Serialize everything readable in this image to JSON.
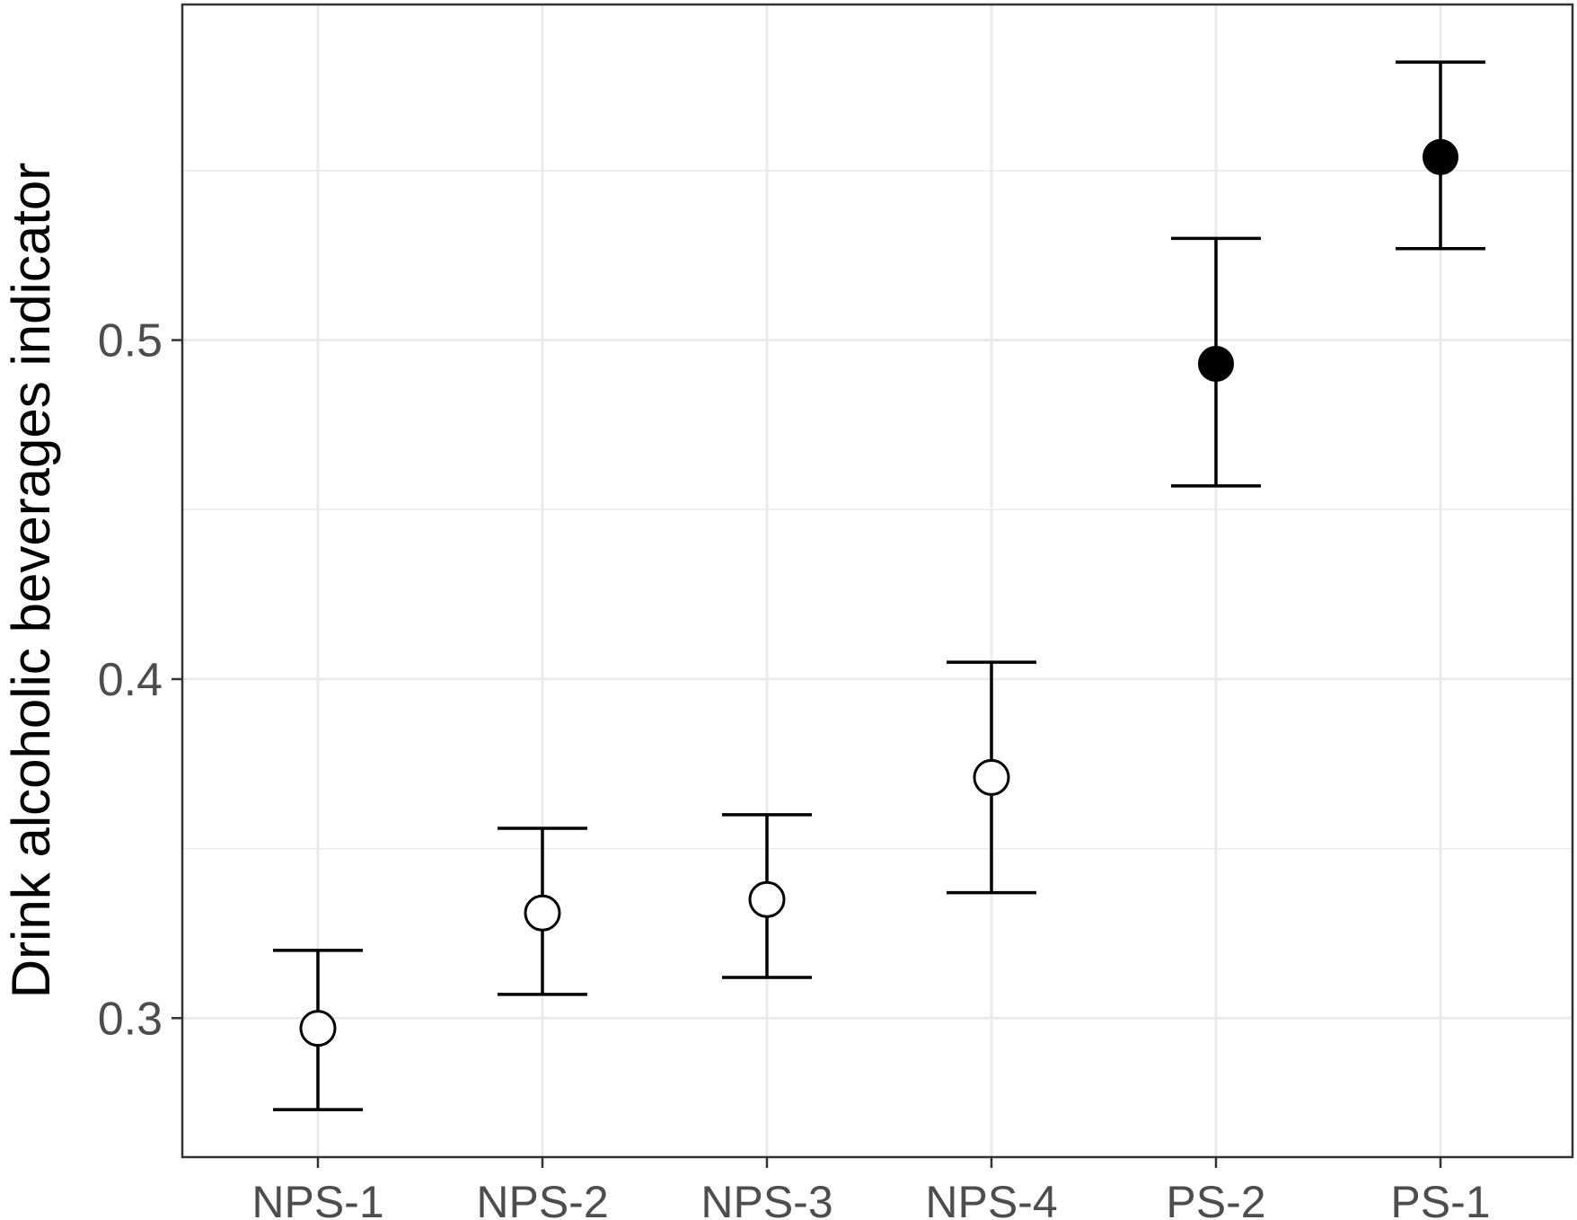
{
  "chart_data": {
    "type": "scatter",
    "title": "",
    "xlabel": "",
    "ylabel": "Drink alcoholic beverages indicator",
    "categories": [
      "NPS-1",
      "NPS-2",
      "NPS-3",
      "NPS-4",
      "PS-2",
      "PS-1"
    ],
    "points": [
      {
        "category": "NPS-1",
        "estimate": 0.297,
        "lower": 0.273,
        "upper": 0.32,
        "marker": "open-circle"
      },
      {
        "category": "NPS-2",
        "estimate": 0.331,
        "lower": 0.307,
        "upper": 0.356,
        "marker": "open-circle"
      },
      {
        "category": "NPS-3",
        "estimate": 0.335,
        "lower": 0.312,
        "upper": 0.36,
        "marker": "open-circle"
      },
      {
        "category": "NPS-4",
        "estimate": 0.371,
        "lower": 0.337,
        "upper": 0.405,
        "marker": "open-circle"
      },
      {
        "category": "PS-2",
        "estimate": 0.493,
        "lower": 0.457,
        "upper": 0.53,
        "marker": "filled-circle"
      },
      {
        "category": "PS-1",
        "estimate": 0.554,
        "lower": 0.527,
        "upper": 0.582,
        "marker": "filled-circle"
      }
    ],
    "ylim": [
      0.259,
      0.599
    ],
    "y_ticks": [
      0.3,
      0.4,
      0.5
    ],
    "y_tick_labels": [
      "0.3",
      "0.4",
      "0.5"
    ],
    "y_minor_ticks": [
      0.35,
      0.45,
      0.55
    ],
    "grid": true,
    "legend": "none",
    "colors": {
      "ink": "#000000",
      "grid": "#ebebeb",
      "tick_text": "#4d4d4d",
      "panel_border": "#333333"
    }
  }
}
